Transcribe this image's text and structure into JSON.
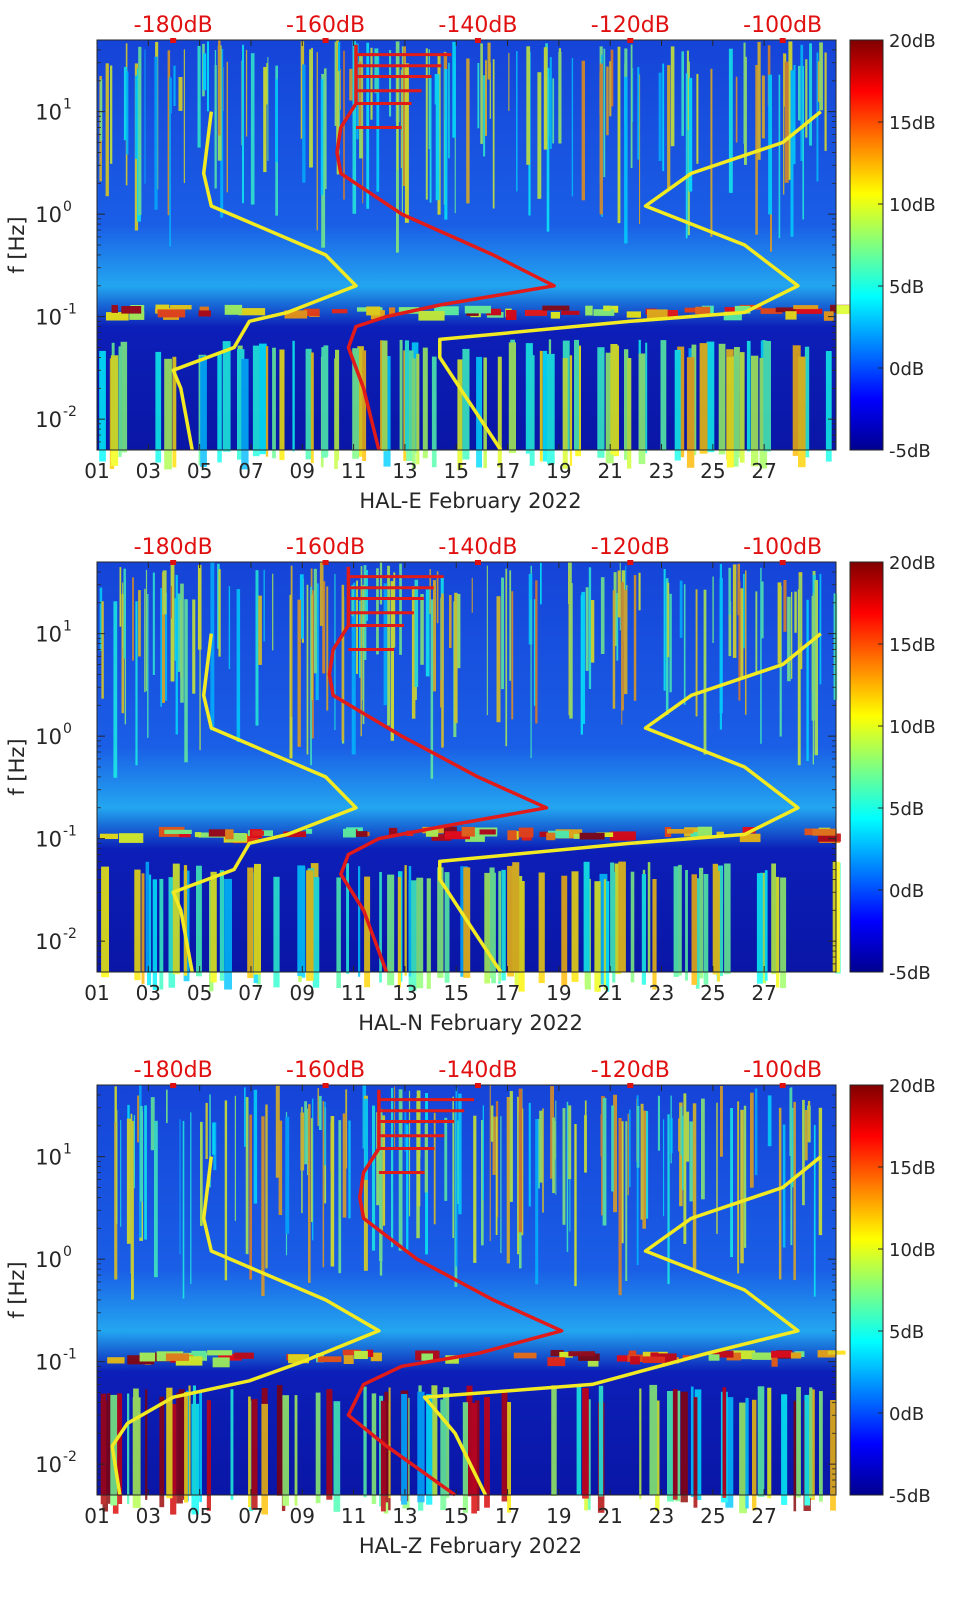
{
  "colors": {
    "red_curve": "#e11a1a",
    "yellow_curve": "#f2ea22",
    "top_label": "#e01010",
    "axis_text": "#262626"
  },
  "chart_data": [
    {
      "type": "heatmap",
      "xlabel": "HAL-E February 2022",
      "ylabel": "f [Hz]",
      "x_ticks": [
        "01",
        "03",
        "05",
        "07",
        "09",
        "11",
        "13",
        "15",
        "17",
        "19",
        "21",
        "23",
        "25",
        "27"
      ],
      "x_range_days": [
        1,
        29.8
      ],
      "y_scale": "log",
      "y_range": [
        0.005,
        50
      ],
      "y_ticks": [
        {
          "exp": -2,
          "label_base": "10",
          "label_exp": "-2"
        },
        {
          "exp": -1,
          "label_base": "10",
          "label_exp": "-1"
        },
        {
          "exp": 0,
          "label_base": "10",
          "label_exp": "0"
        },
        {
          "exp": 1,
          "label_base": "10",
          "label_exp": "1"
        }
      ],
      "top_axis_labels": [
        "-180dB",
        "-160dB",
        "-140dB",
        "-120dB",
        "-100dB"
      ],
      "top_axis_range_db": [
        -190,
        -93
      ],
      "colorbar": {
        "range_db": [
          -5,
          20
        ],
        "labels": [
          "20dB",
          "15dB",
          "10dB",
          "5dB",
          "0dB",
          "-5dB"
        ]
      },
      "red_curve_db_vs_f": [
        [
          -153,
          0.005
        ],
        [
          -155,
          0.02
        ],
        [
          -157,
          0.05
        ],
        [
          -156,
          0.08
        ],
        [
          -152,
          0.1
        ],
        [
          -145,
          0.13
        ],
        [
          -130,
          0.2
        ],
        [
          -138,
          0.4
        ],
        [
          -150,
          1
        ],
        [
          -158,
          2.5
        ],
        [
          -158.5,
          4
        ],
        [
          -158,
          7
        ],
        [
          -156,
          12
        ],
        [
          -156,
          20
        ],
        [
          -156,
          30
        ],
        [
          -156,
          45
        ]
      ],
      "yellow_curve_db_vs_f": [
        [
          -177.5,
          0.005
        ],
        [
          -179,
          0.02
        ],
        [
          -180,
          0.03
        ],
        [
          -172,
          0.05
        ],
        [
          -170,
          0.09
        ],
        [
          -165,
          0.11
        ],
        [
          -156,
          0.2
        ],
        [
          -160,
          0.4
        ],
        [
          -175,
          1.2
        ],
        [
          -176,
          2.5
        ],
        [
          -175,
          10
        ]
      ],
      "yellow_curve_right_db_vs_f": [
        [
          -137,
          0.005
        ],
        [
          -145,
          0.04
        ],
        [
          -145,
          0.06
        ],
        [
          -120,
          0.09
        ],
        [
          -105,
          0.11
        ],
        [
          -98,
          0.2
        ],
        [
          -105,
          0.5
        ],
        [
          -118,
          1.2
        ],
        [
          -112,
          2.5
        ],
        [
          -100,
          5
        ],
        [
          -95,
          10
        ]
      ]
    },
    {
      "type": "heatmap",
      "xlabel": "HAL-N February 2022",
      "ylabel": "f [Hz]",
      "x_ticks": [
        "01",
        "03",
        "05",
        "07",
        "09",
        "11",
        "13",
        "15",
        "17",
        "19",
        "21",
        "23",
        "25",
        "27"
      ],
      "x_range_days": [
        1,
        29.8
      ],
      "y_scale": "log",
      "y_range": [
        0.005,
        50
      ],
      "y_ticks": [
        {
          "exp": -2,
          "label_base": "10",
          "label_exp": "-2"
        },
        {
          "exp": -1,
          "label_base": "10",
          "label_exp": "-1"
        },
        {
          "exp": 0,
          "label_base": "10",
          "label_exp": "0"
        },
        {
          "exp": 1,
          "label_base": "10",
          "label_exp": "1"
        }
      ],
      "top_axis_labels": [
        "-180dB",
        "-160dB",
        "-140dB",
        "-120dB",
        "-100dB"
      ],
      "top_axis_range_db": [
        -190,
        -93
      ],
      "colorbar": {
        "range_db": [
          -5,
          20
        ],
        "labels": [
          "20dB",
          "15dB",
          "10dB",
          "5dB",
          "0dB",
          "-5dB"
        ]
      },
      "red_curve_db_vs_f": [
        [
          -152,
          0.005
        ],
        [
          -155,
          0.02
        ],
        [
          -158,
          0.045
        ],
        [
          -157,
          0.07
        ],
        [
          -153,
          0.1
        ],
        [
          -145,
          0.13
        ],
        [
          -131,
          0.2
        ],
        [
          -140,
          0.4
        ],
        [
          -150,
          1
        ],
        [
          -159,
          2.5
        ],
        [
          -159.5,
          4
        ],
        [
          -159,
          7
        ],
        [
          -157,
          12
        ],
        [
          -157,
          20
        ],
        [
          -157,
          30
        ],
        [
          -157,
          45
        ]
      ],
      "yellow_curve_db_vs_f": [
        [
          -177.5,
          0.005
        ],
        [
          -179,
          0.02
        ],
        [
          -180,
          0.03
        ],
        [
          -172,
          0.05
        ],
        [
          -170,
          0.09
        ],
        [
          -165,
          0.11
        ],
        [
          -156,
          0.2
        ],
        [
          -160,
          0.4
        ],
        [
          -175,
          1.2
        ],
        [
          -176,
          2.5
        ],
        [
          -175,
          10
        ]
      ],
      "yellow_curve_right_db_vs_f": [
        [
          -137,
          0.005
        ],
        [
          -145,
          0.04
        ],
        [
          -145,
          0.06
        ],
        [
          -120,
          0.09
        ],
        [
          -105,
          0.11
        ],
        [
          -98,
          0.2
        ],
        [
          -105,
          0.5
        ],
        [
          -118,
          1.2
        ],
        [
          -112,
          2.5
        ],
        [
          -100,
          5
        ],
        [
          -95,
          10
        ]
      ]
    },
    {
      "type": "heatmap",
      "xlabel": "HAL-Z February 2022",
      "ylabel": "f [Hz]",
      "x_ticks": [
        "01",
        "03",
        "05",
        "07",
        "09",
        "11",
        "13",
        "15",
        "17",
        "19",
        "21",
        "23",
        "25",
        "27"
      ],
      "x_range_days": [
        1,
        29.8
      ],
      "y_scale": "log",
      "y_range": [
        0.005,
        50
      ],
      "y_ticks": [
        {
          "exp": -2,
          "label_base": "10",
          "label_exp": "-2"
        },
        {
          "exp": -1,
          "label_base": "10",
          "label_exp": "-1"
        },
        {
          "exp": 0,
          "label_base": "10",
          "label_exp": "0"
        },
        {
          "exp": 1,
          "label_base": "10",
          "label_exp": "1"
        }
      ],
      "top_axis_labels": [
        "-180dB",
        "-160dB",
        "-140dB",
        "-120dB",
        "-100dB"
      ],
      "top_axis_range_db": [
        -190,
        -93
      ],
      "colorbar": {
        "range_db": [
          -5,
          20
        ],
        "labels": [
          "20dB",
          "15dB",
          "10dB",
          "5dB",
          "0dB",
          "-5dB"
        ]
      },
      "red_curve_db_vs_f": [
        [
          -143,
          0.005
        ],
        [
          -152,
          0.015
        ],
        [
          -157,
          0.03
        ],
        [
          -155,
          0.06
        ],
        [
          -150,
          0.09
        ],
        [
          -140,
          0.12
        ],
        [
          -129,
          0.2
        ],
        [
          -138,
          0.4
        ],
        [
          -148,
          1
        ],
        [
          -155,
          2.5
        ],
        [
          -155.5,
          4
        ],
        [
          -155,
          7
        ],
        [
          -153,
          12
        ],
        [
          -153,
          20
        ],
        [
          -153,
          30
        ],
        [
          -153,
          45
        ]
      ],
      "yellow_curve_db_vs_f": [
        [
          -187,
          0.005
        ],
        [
          -188,
          0.015
        ],
        [
          -186,
          0.025
        ],
        [
          -180,
          0.045
        ],
        [
          -170,
          0.065
        ],
        [
          -163,
          0.1
        ],
        [
          -153,
          0.2
        ],
        [
          -160,
          0.4
        ],
        [
          -175,
          1.2
        ],
        [
          -176,
          2.5
        ],
        [
          -175,
          10
        ]
      ],
      "yellow_curve_right_db_vs_f": [
        [
          -139,
          0.005
        ],
        [
          -143,
          0.02
        ],
        [
          -147,
          0.045
        ],
        [
          -125,
          0.06
        ],
        [
          -110,
          0.12
        ],
        [
          -98,
          0.2
        ],
        [
          -105,
          0.5
        ],
        [
          -118,
          1.2
        ],
        [
          -112,
          2.5
        ],
        [
          -100,
          5
        ],
        [
          -95,
          10
        ]
      ]
    }
  ]
}
